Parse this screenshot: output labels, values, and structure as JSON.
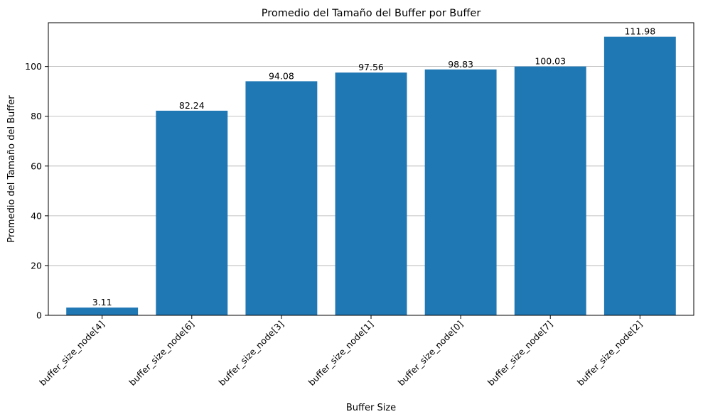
{
  "chart_data": {
    "type": "bar",
    "title": "Promedio del Tamaño del Buffer por Buffer",
    "xlabel": "Buffer Size",
    "ylabel": "Promedio del Tamaño del Buffer",
    "categories": [
      "buffer_size_node[4]",
      "buffer_size_node[6]",
      "buffer_size_node[3]",
      "buffer_size_node[1]",
      "buffer_size_node[0]",
      "buffer_size_node[7]",
      "buffer_size_node[2]"
    ],
    "values": [
      3.11,
      82.24,
      94.08,
      97.56,
      98.83,
      100.03,
      111.98
    ],
    "value_labels": [
      "3.11",
      "82.24",
      "94.08",
      "97.56",
      "98.83",
      "100.03",
      "111.98"
    ],
    "yticks": [
      0,
      20,
      40,
      60,
      80,
      100
    ],
    "ylim": [
      0,
      117.6
    ],
    "grid": "horizontal",
    "legend": "none",
    "bar_color": "#1f77b4",
    "grid_color": "#b0b0b0"
  }
}
